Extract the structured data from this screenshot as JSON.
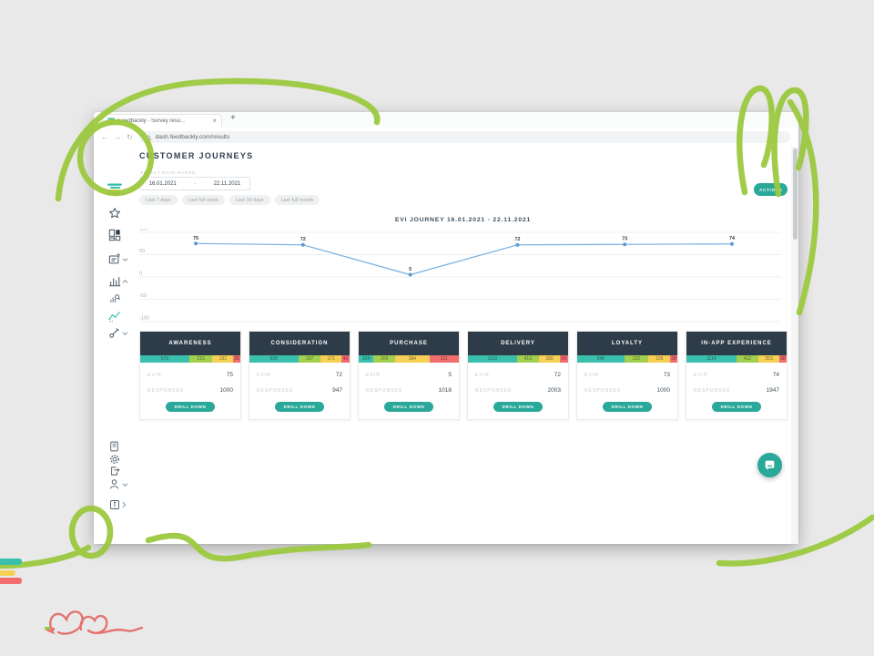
{
  "browser": {
    "tab_title": "Feedbackly - Survey resu...",
    "close_tab_glyph": "×",
    "new_tab_glyph": "+",
    "back_glyph": "←",
    "forward_glyph": "→",
    "reload_glyph": "↻",
    "url": "dash.feedbackly.com/results"
  },
  "sidebar": {
    "top_icons": [
      "feedbackly-logo",
      "starred",
      "dashboards",
      "surveys",
      "analytics",
      "results",
      "customer-journeys",
      "tools"
    ],
    "bottom_icons": [
      "guides",
      "settings",
      "export",
      "account",
      "info"
    ]
  },
  "page": {
    "title": "CUSTOMER JOURNEYS",
    "date_range_label": "SELECT DATE RANGE",
    "date_from": "16.01.2021",
    "date_separator": "-",
    "date_to": "22.11.2021",
    "quick_ranges": [
      "Last 7 days",
      "Last full week",
      "Last 30 days",
      "Last full month"
    ],
    "actions_label": "ACTIONS"
  },
  "chart_data": {
    "type": "line",
    "title": "EVI JOURNEY 16.01.2021 - 22.11.2021",
    "categories": [
      "Awareness",
      "Consideration",
      "Purchase",
      "Delivery",
      "Loyalty",
      "In-App Experience"
    ],
    "values": [
      75,
      72,
      5,
      72,
      73,
      74
    ],
    "ylim": [
      -100,
      100
    ],
    "yticks": [
      100,
      50,
      0,
      -50,
      -100
    ],
    "grid": true,
    "legend": false,
    "line_color": "#7fb4e3",
    "point_color": "#5b9ad2"
  },
  "cards": [
    {
      "title": "AWARENESS",
      "segments": [
        {
          "value": 575,
          "color": "teal"
        },
        {
          "value": 215,
          "color": "green"
        },
        {
          "value": 182,
          "color": "yellow"
        },
        {
          "value": 28,
          "color": "red"
        }
      ],
      "evi_label": "EVI®",
      "evi": "75",
      "responses_label": "RESPONSES",
      "responses": "1000",
      "button_label": "DRILL DOWN"
    },
    {
      "title": "CONSIDERATION",
      "segments": [
        {
          "value": 539,
          "color": "teal"
        },
        {
          "value": 197,
          "color": "green"
        },
        {
          "value": 171,
          "color": "yellow"
        },
        {
          "value": 40,
          "color": "red"
        }
      ],
      "evi_label": "EVI®",
      "evi": "72",
      "responses_label": "RESPONSES",
      "responses": "947",
      "button_label": "DRILL DOWN"
    },
    {
      "title": "PURCHASE",
      "segments": [
        {
          "value": 104,
          "color": "teal"
        },
        {
          "value": 209,
          "color": "green"
        },
        {
          "value": 384,
          "color": "yellow"
        },
        {
          "value": 321,
          "color": "red"
        }
      ],
      "evi_label": "EVI®",
      "evi": "5",
      "responses_label": "RESPONSES",
      "responses": "1018",
      "button_label": "DRILL DOWN"
    },
    {
      "title": "DELIVERY",
      "segments": [
        {
          "value": 1118,
          "color": "teal"
        },
        {
          "value": 419,
          "color": "green"
        },
        {
          "value": 380,
          "color": "yellow"
        },
        {
          "value": 86,
          "color": "red"
        }
      ],
      "evi_label": "EVI®",
      "evi": "72",
      "responses_label": "RESPONSES",
      "responses": "2003",
      "button_label": "DRILL DOWN"
    },
    {
      "title": "LOYALTY",
      "segments": [
        {
          "value": 545,
          "color": "teal"
        },
        {
          "value": 232,
          "color": "green"
        },
        {
          "value": 195,
          "color": "yellow"
        },
        {
          "value": 28,
          "color": "red"
        }
      ],
      "evi_label": "EVI®",
      "evi": "73",
      "responses_label": "RESPONSES",
      "responses": "1000",
      "button_label": "DRILL DOWN"
    },
    {
      "title": "IN-APP EXPERIENCE",
      "segments": [
        {
          "value": 1114,
          "color": "teal"
        },
        {
          "value": 412,
          "color": "green"
        },
        {
          "value": 353,
          "color": "yellow"
        },
        {
          "value": 68,
          "color": "red"
        }
      ],
      "evi_label": "EVI®",
      "evi": "74",
      "responses_label": "RESPONSES",
      "responses": "1947",
      "button_label": "DRILL DOWN"
    }
  ],
  "colors": {
    "accent_teal": "#2aa89a",
    "card_header": "#2e3c49",
    "segments": {
      "teal": "#3bbfad",
      "green": "#a3cf4f",
      "yellow": "#f5d054",
      "red": "#f26d6d"
    },
    "doodle_green": "#9cc93f",
    "heart_red": "#e4716d",
    "chart_line": "#7fb4e3"
  }
}
